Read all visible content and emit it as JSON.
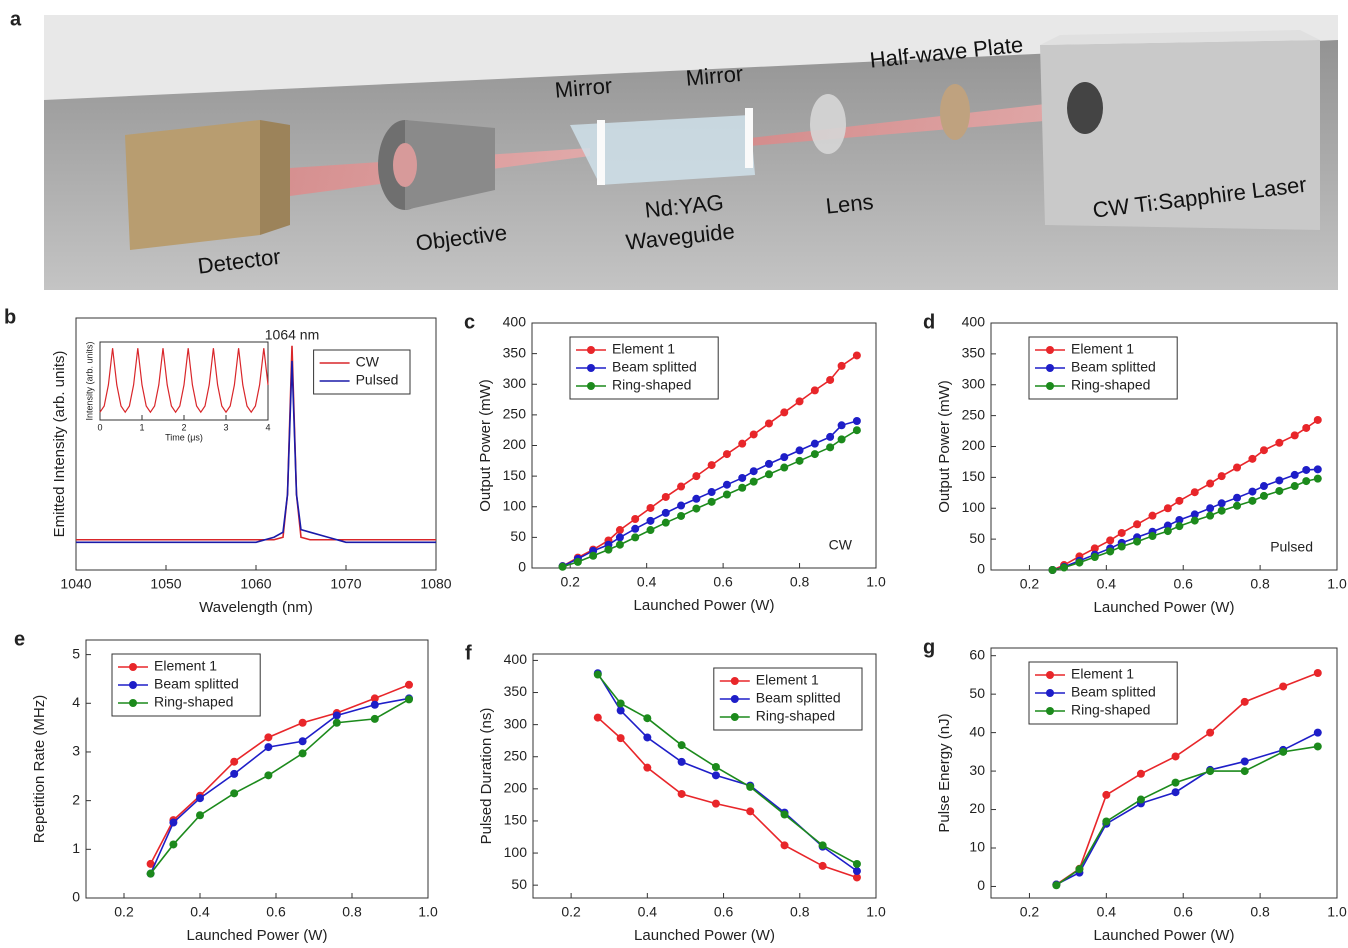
{
  "setup": {
    "panel": "a",
    "labels": {
      "mirror_left": "Mirror",
      "mirror_right": "Mirror",
      "plate": "Half-wave Plate",
      "detector": "Detector",
      "objective": "Objective",
      "crystal": "Nd:YAG",
      "waveguide": "Waveguide",
      "lens": "Lens",
      "laser": "CW Ti:Sapphire Laser"
    }
  },
  "chart_data": [
    {
      "type": "line",
      "panel": "b",
      "xlabel": "Wavelength (nm)",
      "ylabel": "Emitted Intensity (arb. units)",
      "annotation": "1064 nm",
      "legend": "upper right",
      "xlim": [
        1040,
        1080
      ],
      "xticks": [
        1040,
        1050,
        1060,
        1070,
        1080
      ],
      "ylim": [
        0,
        1
      ],
      "x": [
        1040,
        1045,
        1050,
        1055,
        1060,
        1062,
        1063,
        1063.5,
        1064,
        1064.5,
        1065,
        1066,
        1068,
        1070,
        1075,
        1080
      ],
      "series": [
        {
          "name": "CW",
          "color": "#d9262a",
          "values": [
            0.12,
            0.12,
            0.12,
            0.12,
            0.12,
            0.12,
            0.13,
            0.3,
            0.89,
            0.3,
            0.13,
            0.12,
            0.12,
            0.12,
            0.12,
            0.12
          ]
        },
        {
          "name": "Pulsed",
          "color": "#1a1aa8",
          "values": [
            0.11,
            0.11,
            0.11,
            0.11,
            0.11,
            0.13,
            0.15,
            0.3,
            0.83,
            0.3,
            0.16,
            0.15,
            0.13,
            0.11,
            0.11,
            0.11
          ]
        }
      ]
    },
    {
      "type": "line",
      "xlabel": "Time (μs)",
      "ylabel": "Intensity (arb. units)",
      "xlim": [
        0,
        4
      ],
      "xticks": [
        0,
        1,
        2,
        3,
        4
      ],
      "ylim": [
        0,
        1
      ],
      "x": [
        0,
        0.1,
        0.2,
        0.3,
        0.4,
        0.5,
        0.6,
        0.7,
        0.8,
        0.9,
        1.0,
        1.1,
        1.2,
        1.3,
        1.4,
        1.5,
        1.6,
        1.7,
        1.8,
        1.9,
        2.0,
        2.1,
        2.2,
        2.3,
        2.4,
        2.5,
        2.6,
        2.7,
        2.8,
        2.9,
        3.0,
        3.1,
        3.2,
        3.3,
        3.4,
        3.5,
        3.6,
        3.7,
        3.8,
        3.9,
        4.0
      ],
      "series": [
        {
          "color": "#d9262a",
          "values": [
            0.1,
            0.18,
            0.45,
            0.92,
            0.45,
            0.18,
            0.1,
            0.18,
            0.45,
            0.92,
            0.45,
            0.18,
            0.1,
            0.18,
            0.45,
            0.92,
            0.45,
            0.18,
            0.1,
            0.18,
            0.45,
            0.92,
            0.45,
            0.18,
            0.1,
            0.18,
            0.45,
            0.92,
            0.45,
            0.18,
            0.1,
            0.18,
            0.45,
            0.92,
            0.45,
            0.18,
            0.1,
            0.18,
            0.45,
            0.92,
            0.45
          ]
        }
      ]
    },
    {
      "type": "line",
      "panel": "c",
      "xlabel": "Launched Power (W)",
      "ylabel": "Output Power (mW)",
      "annotation": "CW",
      "legend": "upper left",
      "markers": true,
      "xlim": [
        0.1,
        1.0
      ],
      "xticks": [
        0.2,
        0.4,
        0.6,
        0.8,
        {
          "value": 1,
          "label": "1.0"
        }
      ],
      "ylim": [
        0,
        400
      ],
      "yticks": [
        0,
        50,
        100,
        150,
        200,
        250,
        300,
        350,
        400
      ],
      "x": [
        0.18,
        0.22,
        0.26,
        0.3,
        0.33,
        0.37,
        0.41,
        0.45,
        0.49,
        0.53,
        0.57,
        0.61,
        0.65,
        0.68,
        0.72,
        0.76,
        0.8,
        0.84,
        0.88,
        0.91,
        0.95
      ],
      "series": [
        {
          "name": "Element 1",
          "color": "#e8262a",
          "values": [
            3,
            17,
            30,
            45,
            62,
            80,
            98,
            116,
            133,
            150,
            168,
            186,
            203,
            218,
            236,
            254,
            272,
            290,
            307,
            330,
            347
          ]
        },
        {
          "name": "Beam splitted",
          "color": "#1e1ec8",
          "values": [
            3,
            15,
            28,
            38,
            50,
            64,
            77,
            90,
            102,
            113,
            124,
            136,
            147,
            158,
            170,
            181,
            192,
            203,
            214,
            233,
            240
          ]
        },
        {
          "name": "Ring-shaped",
          "color": "#1c8a1c",
          "values": [
            2,
            10,
            20,
            30,
            38,
            50,
            62,
            74,
            85,
            97,
            108,
            120,
            131,
            141,
            153,
            164,
            175,
            186,
            197,
            210,
            225
          ]
        }
      ]
    },
    {
      "type": "line",
      "panel": "d",
      "xlabel": "Launched Power (W)",
      "ylabel": "Output Power (mW)",
      "annotation": "Pulsed",
      "legend": "upper left",
      "markers": true,
      "xlim": [
        0.1,
        1.0
      ],
      "xticks": [
        0.2,
        0.4,
        0.6,
        0.8,
        {
          "value": 1,
          "label": "1.0"
        }
      ],
      "ylim": [
        0,
        400
      ],
      "yticks": [
        0,
        50,
        100,
        150,
        200,
        250,
        300,
        350,
        400
      ],
      "x": [
        0.26,
        0.29,
        0.33,
        0.37,
        0.41,
        0.44,
        0.48,
        0.52,
        0.56,
        0.59,
        0.63,
        0.67,
        0.7,
        0.74,
        0.78,
        0.81,
        0.85,
        0.89,
        0.92,
        0.95
      ],
      "series": [
        {
          "name": "Element 1",
          "color": "#e8262a",
          "values": [
            0,
            8,
            22,
            35,
            48,
            60,
            74,
            88,
            100,
            112,
            126,
            140,
            152,
            166,
            180,
            194,
            206,
            218,
            230,
            243
          ]
        },
        {
          "name": "Beam splitted",
          "color": "#1e1ec8",
          "values": [
            0,
            5,
            15,
            25,
            35,
            44,
            53,
            62,
            72,
            81,
            90,
            100,
            108,
            117,
            127,
            136,
            145,
            154,
            162,
            163
          ]
        },
        {
          "name": "Ring-shaped",
          "color": "#1c8a1c",
          "values": [
            0,
            4,
            12,
            21,
            30,
            38,
            46,
            55,
            63,
            71,
            80,
            88,
            96,
            104,
            112,
            120,
            128,
            136,
            144,
            148
          ]
        }
      ]
    },
    {
      "type": "line",
      "panel": "e",
      "xlabel": "Launched Power (W)",
      "ylabel": "Repetition Rate (MHz)",
      "legend": "upper left",
      "markers": true,
      "xlim": [
        0.1,
        1.0
      ],
      "xticks": [
        0.2,
        0.4,
        0.6,
        0.8,
        {
          "value": 1,
          "label": "1.0"
        }
      ],
      "ylim": [
        0,
        5.3
      ],
      "yticks": [
        0,
        1,
        2,
        3,
        4,
        5
      ],
      "x": [
        0.27,
        0.33,
        0.4,
        0.49,
        0.58,
        0.67,
        0.76,
        0.86,
        0.95
      ],
      "series": [
        {
          "name": "Element 1",
          "color": "#e8262a",
          "values": [
            0.7,
            1.6,
            2.1,
            2.8,
            3.3,
            3.6,
            3.8,
            4.1,
            4.38
          ]
        },
        {
          "name": "Beam splitted",
          "color": "#1e1ec8",
          "values": [
            0.5,
            1.55,
            2.05,
            2.55,
            3.1,
            3.22,
            3.75,
            3.97,
            4.1
          ]
        },
        {
          "name": "Ring-shaped",
          "color": "#1c8a1c",
          "values": [
            0.5,
            1.1,
            1.7,
            2.15,
            2.52,
            2.97,
            3.6,
            3.68,
            4.08
          ]
        }
      ]
    },
    {
      "type": "line",
      "panel": "f",
      "xlabel": "Launched Power (W)",
      "ylabel": "Pulsed Duration (ns)",
      "legend": "upper right",
      "markers": true,
      "xlim": [
        0.1,
        1.0
      ],
      "xticks": [
        0.2,
        0.4,
        0.6,
        0.8,
        {
          "value": 1,
          "label": "1.0"
        }
      ],
      "ylim": [
        30,
        410
      ],
      "yticks": [
        50,
        100,
        150,
        200,
        250,
        300,
        350,
        400
      ],
      "x": [
        0.27,
        0.33,
        0.4,
        0.49,
        0.58,
        0.67,
        0.76,
        0.86,
        0.95
      ],
      "series": [
        {
          "name": "Element 1",
          "color": "#e8262a",
          "values": [
            311,
            279,
            233,
            192,
            177,
            165,
            112,
            80,
            62
          ]
        },
        {
          "name": "Beam splitted",
          "color": "#1e1ec8",
          "values": [
            380,
            322,
            280,
            242,
            221,
            205,
            163,
            110,
            72
          ]
        },
        {
          "name": "Ring-shaped",
          "color": "#1c8a1c",
          "values": [
            378,
            333,
            310,
            268,
            234,
            203,
            160,
            112,
            83
          ]
        }
      ]
    },
    {
      "type": "line",
      "panel": "g",
      "xlabel": "Launched Power (W)",
      "ylabel": "Pulse Energy  (nJ)",
      "legend": "upper left",
      "markers": true,
      "xlim": [
        0.1,
        1.0
      ],
      "xticks": [
        0.2,
        0.4,
        0.6,
        0.8,
        {
          "value": 1,
          "label": "1.0"
        }
      ],
      "ylim": [
        -3,
        62
      ],
      "yticks": [
        0,
        10,
        20,
        30,
        40,
        50,
        60
      ],
      "x": [
        0.27,
        0.33,
        0.4,
        0.49,
        0.58,
        0.67,
        0.76,
        0.86,
        0.95
      ],
      "series": [
        {
          "name": "Element 1",
          "color": "#e8262a",
          "values": [
            0.5,
            4.6,
            23.8,
            29.3,
            33.8,
            40,
            48,
            52,
            55.5
          ]
        },
        {
          "name": "Beam splitted",
          "color": "#1e1ec8",
          "values": [
            0.5,
            3.6,
            16.3,
            21.6,
            24.5,
            30.3,
            32.5,
            35.5,
            40
          ]
        },
        {
          "name": "Ring-shaped",
          "color": "#1c8a1c",
          "values": [
            0.3,
            4.5,
            16.9,
            22.6,
            27,
            30,
            30,
            35,
            36.4
          ]
        }
      ]
    }
  ]
}
